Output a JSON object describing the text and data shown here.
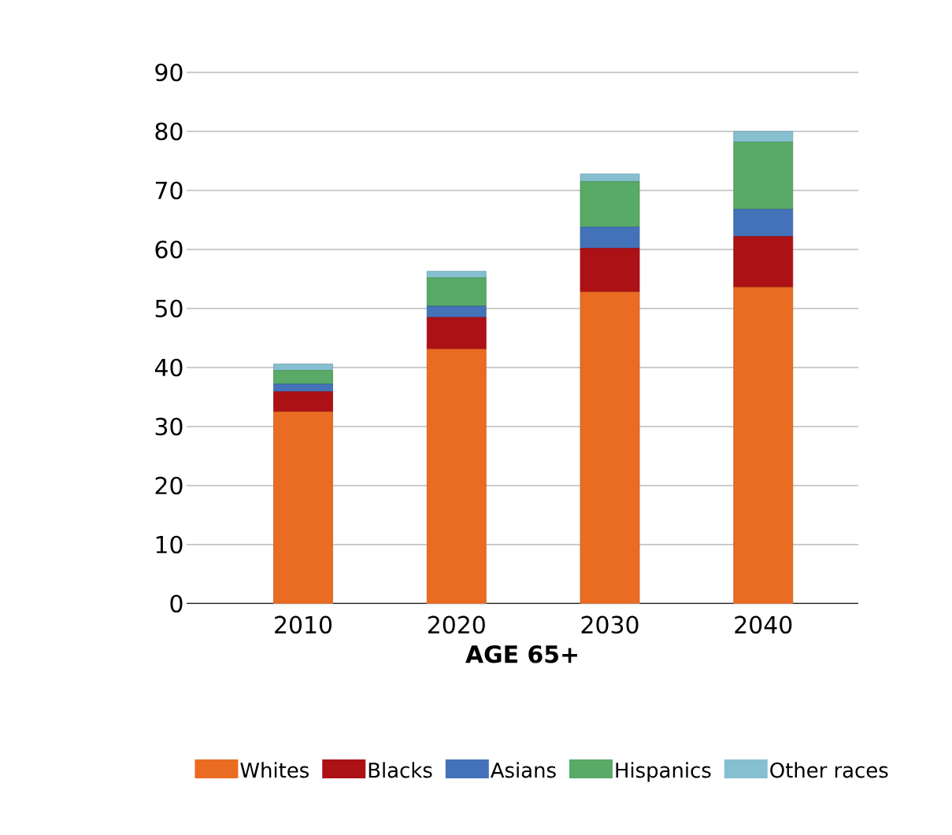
{
  "chart_data": {
    "type": "bar",
    "stacked": true,
    "xlabel": "AGE 65+",
    "categories": [
      "2010",
      "2020",
      "2030",
      "2040"
    ],
    "ylim": [
      0,
      90
    ],
    "yticks": [
      0,
      10,
      20,
      30,
      40,
      50,
      60,
      70,
      80,
      90
    ],
    "grid": "y",
    "legend": "bottom",
    "series": [
      {
        "name": "Whites",
        "color": "#ea6c23",
        "values": [
          32.5,
          43.1,
          52.8,
          53.6
        ]
      },
      {
        "name": "Blacks",
        "color": "#ac1116",
        "values": [
          3.4,
          5.4,
          7.4,
          8.6
        ]
      },
      {
        "name": "Asians",
        "color": "#4472b8",
        "values": [
          1.3,
          1.9,
          3.6,
          4.6
        ]
      },
      {
        "name": "Hispanics",
        "color": "#58aa66",
        "values": [
          2.3,
          4.8,
          7.7,
          11.4
        ]
      },
      {
        "name": "Other races",
        "color": "#86bfd0",
        "values": [
          1.1,
          1.1,
          1.3,
          1.8
        ]
      }
    ]
  }
}
